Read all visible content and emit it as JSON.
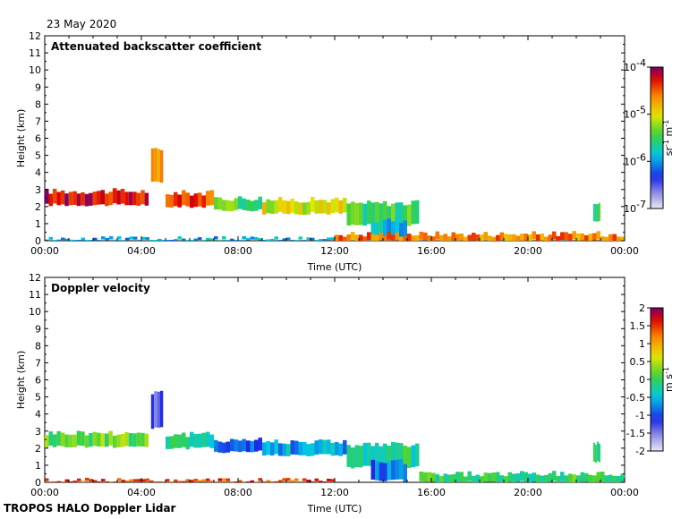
{
  "date_label": "23 May 2020",
  "footer": "TROPOS HALO Doppler Lidar",
  "chart_data": [
    {
      "type": "heatmap",
      "title": "Attenuated backscatter coefficient",
      "xlabel": "Time (UTC)",
      "ylabel": "Height (km)",
      "xlim": [
        0,
        24
      ],
      "ylim": [
        0,
        12
      ],
      "x_ticks": [
        "00:00",
        "04:00",
        "08:00",
        "12:00",
        "16:00",
        "20:00",
        "00:00"
      ],
      "y_ticks": [
        0,
        1,
        2,
        3,
        4,
        5,
        6,
        7,
        8,
        9,
        10,
        11,
        12
      ],
      "colorbar": {
        "scale": "log",
        "range": [
          1e-07,
          0.0001
        ],
        "ticks": [
          {
            "base": "10",
            "exp": "-4",
            "value": 0.0001
          },
          {
            "base": "10",
            "exp": "-5",
            "value": 1e-05
          },
          {
            "base": "10",
            "exp": "-6",
            "value": 1e-06
          },
          {
            "base": "10",
            "exp": "-7",
            "value": 1e-07
          }
        ],
        "units": "sr-1 m-1"
      },
      "features": [
        {
          "t0": 0.0,
          "t1": 4.3,
          "h0": 2.1,
          "h1": 2.9,
          "level": 0.92
        },
        {
          "t0": 4.4,
          "t1": 4.9,
          "h0": 3.4,
          "h1": 5.3,
          "level": 0.72
        },
        {
          "t0": 5.0,
          "t1": 7.0,
          "h0": 2.0,
          "h1": 2.8,
          "level": 0.85
        },
        {
          "t0": 7.0,
          "t1": 9.0,
          "h0": 1.8,
          "h1": 2.5,
          "level": 0.52
        },
        {
          "t0": 9.0,
          "t1": 12.5,
          "h0": 1.6,
          "h1": 2.4,
          "level": 0.65
        },
        {
          "t0": 12.5,
          "t1": 15.5,
          "h0": 0.9,
          "h1": 2.2,
          "level": 0.5
        },
        {
          "t0": 13.5,
          "t1": 15.0,
          "h0": 0.1,
          "h1": 1.2,
          "level": 0.38
        },
        {
          "t0": 12.0,
          "t1": 24.0,
          "h0": 0.0,
          "h1": 0.4,
          "level": 0.8
        },
        {
          "t0": 22.7,
          "t1": 23.0,
          "h0": 1.2,
          "h1": 2.3,
          "level": 0.5
        },
        {
          "t0": 0.0,
          "t1": 12.0,
          "h0": 0.0,
          "h1": 0.1,
          "level": 0.35
        }
      ]
    },
    {
      "type": "heatmap",
      "title": "Doppler velocity",
      "xlabel": "Time (UTC)",
      "ylabel": "Height (km)",
      "xlim": [
        0,
        24
      ],
      "ylim": [
        0,
        12
      ],
      "x_ticks": [
        "00:00",
        "04:00",
        "08:00",
        "12:00",
        "16:00",
        "20:00",
        "00:00"
      ],
      "y_ticks": [
        0,
        1,
        2,
        3,
        4,
        5,
        6,
        7,
        8,
        9,
        10,
        11,
        12
      ],
      "colorbar": {
        "scale": "linear",
        "range": [
          -2,
          2
        ],
        "ticks": [
          "2",
          "1.5",
          "1",
          "0.5",
          "0",
          "-0.5",
          "-1",
          "-1.5",
          "-2"
        ],
        "units": "m s-1"
      },
      "features": [
        {
          "t0": 0.0,
          "t1": 4.3,
          "h0": 2.1,
          "h1": 2.9,
          "level": 0.55
        },
        {
          "t0": 4.4,
          "t1": 4.9,
          "h0": 3.2,
          "h1": 5.3,
          "level": 0.2
        },
        {
          "t0": 5.0,
          "t1": 7.0,
          "h0": 2.0,
          "h1": 2.8,
          "level": 0.45
        },
        {
          "t0": 7.0,
          "t1": 9.0,
          "h0": 1.8,
          "h1": 2.5,
          "level": 0.25
        },
        {
          "t0": 9.0,
          "t1": 12.5,
          "h0": 1.6,
          "h1": 2.4,
          "level": 0.35
        },
        {
          "t0": 12.5,
          "t1": 15.5,
          "h0": 0.9,
          "h1": 2.2,
          "level": 0.45
        },
        {
          "t0": 13.5,
          "t1": 15.0,
          "h0": 0.1,
          "h1": 1.2,
          "level": 0.3
        },
        {
          "t0": 15.5,
          "t1": 24.0,
          "h0": 0.0,
          "h1": 0.5,
          "level": 0.5
        },
        {
          "t0": 22.7,
          "t1": 23.0,
          "h0": 1.2,
          "h1": 2.3,
          "level": 0.45
        },
        {
          "t0": 0.0,
          "t1": 12.0,
          "h0": 0.0,
          "h1": 0.1,
          "level": 0.85
        }
      ]
    }
  ]
}
